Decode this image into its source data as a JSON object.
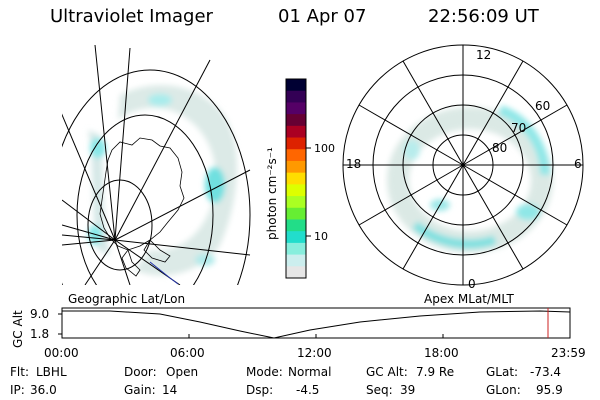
{
  "header": {
    "title": "Ultraviolet Imager",
    "date": "01 Apr 07",
    "time": "22:56:09 UT"
  },
  "left_panel": {
    "caption": "Geographic Lat/Lon"
  },
  "right_panel": {
    "caption": "Apex MLat/MLT",
    "mlt_labels": {
      "top": "12",
      "left": "18",
      "right": "6",
      "bottom": "0"
    },
    "lat_labels": [
      "60",
      "70",
      "80"
    ]
  },
  "colorbar": {
    "unit_label": "photon cm⁻²s⁻¹",
    "ticks": [
      "100",
      "10"
    ],
    "colors": [
      "#000033",
      "#330055",
      "#550066",
      "#660033",
      "#aa0022",
      "#dd2200",
      "#ff6600",
      "#ff9900",
      "#ffdd00",
      "#ddff00",
      "#aaff22",
      "#66ee33",
      "#22dd88",
      "#22ddcc",
      "#88eedd",
      "#cceeee",
      "#e6e6e6"
    ]
  },
  "timeline": {
    "ylabel": "GC Alt",
    "y_ticks": [
      "9.0",
      "1.8"
    ],
    "x_ticks": [
      "00:00",
      "06:00",
      "12:00",
      "18:00",
      "23:59"
    ]
  },
  "info": {
    "row1": [
      {
        "label": "Flt:",
        "value": "LBHL"
      },
      {
        "label": "Door:",
        "value": "Open"
      },
      {
        "label": "Mode:",
        "value": "Normal"
      },
      {
        "label": "GC Alt:",
        "value": "7.9 Re"
      },
      {
        "label": "GLat:",
        "value": "-73.4"
      }
    ],
    "row2": [
      {
        "label": "IP:",
        "value": "36.0"
      },
      {
        "label": "Gain:",
        "value": "14"
      },
      {
        "label": "Dsp:",
        "value": "-4.5"
      },
      {
        "label": "Seq:",
        "value": "39"
      },
      {
        "label": "GLon:",
        "value": "95.9"
      }
    ]
  }
}
